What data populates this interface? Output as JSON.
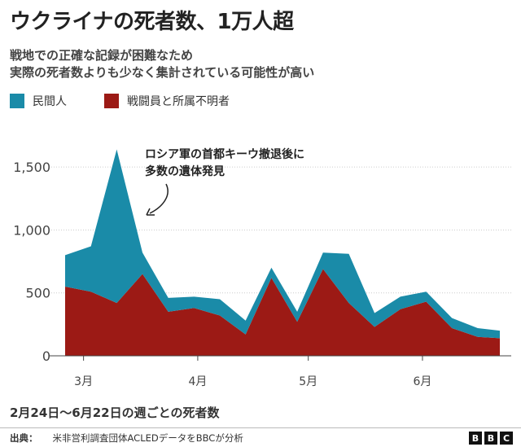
{
  "title": "ウクライナの死者数、1万人超",
  "subtitle_lines": [
    "戦地での正確な記録が困難なため",
    "実際の死者数よりも少なく集計されている可能性が高い"
  ],
  "legend": [
    {
      "label": "民間人",
      "color": "#1a8ba8"
    },
    {
      "label": "戦闘員と所属不明者",
      "color": "#9c1a15"
    }
  ],
  "annotation": {
    "lines": [
      "ロシア軍の首都キーウ撤退後に",
      "多数の遺体発見"
    ]
  },
  "footnote": "2月24日～6月22日の週ごとの死者数",
  "source": {
    "label": "出典：",
    "text": "米非営利調査団体ACLEDデータをBBCが分析"
  },
  "logo": {
    "letters": [
      "B",
      "B",
      "C"
    ]
  },
  "chart_data": {
    "type": "area",
    "stacked": true,
    "x_unit": "week",
    "x": [
      "2022-02-24",
      "2022-03-03",
      "2022-03-10",
      "2022-03-17",
      "2022-03-24",
      "2022-03-31",
      "2022-04-07",
      "2022-04-14",
      "2022-04-21",
      "2022-04-28",
      "2022-05-05",
      "2022-05-12",
      "2022-05-19",
      "2022-05-26",
      "2022-06-02",
      "2022-06-09",
      "2022-06-16",
      "2022-06-22"
    ],
    "series": [
      {
        "name": "戦闘員と所属不明者",
        "color": "#9c1a15",
        "values": [
          550,
          510,
          420,
          650,
          350,
          380,
          320,
          170,
          620,
          270,
          690,
          420,
          230,
          370,
          430,
          220,
          150,
          140
        ]
      },
      {
        "name": "民間人",
        "color": "#1a8ba8",
        "values": [
          250,
          360,
          1220,
          170,
          110,
          90,
          130,
          110,
          80,
          80,
          130,
          390,
          110,
          100,
          80,
          80,
          70,
          60
        ]
      }
    ],
    "ylim": [
      0,
      1650
    ],
    "yticks": [
      0,
      500,
      1000,
      1500
    ],
    "ytick_labels": [
      "0",
      "500",
      "1,000",
      "1,500"
    ],
    "xticks": [
      {
        "label": "3月",
        "date": "2022-03-01"
      },
      {
        "label": "4月",
        "date": "2022-04-01"
      },
      {
        "label": "5月",
        "date": "2022-05-01"
      },
      {
        "label": "6月",
        "date": "2022-06-01"
      }
    ],
    "grid": true,
    "legend_position": "top-left",
    "annotation_target": {
      "x": "2022-03-17",
      "y": 1100
    }
  }
}
